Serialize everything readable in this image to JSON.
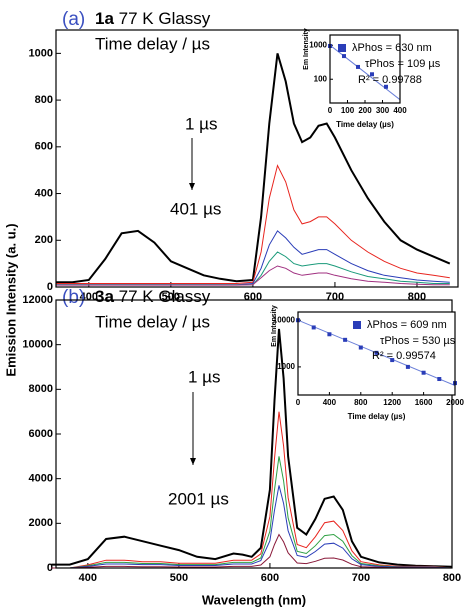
{
  "chart_data": [
    {
      "type": "line",
      "ylabel": "Emission Intensity (a. u.)",
      "annotations": {
        "panel": "(a)",
        "sample": "1a",
        "condition": "77 K Glassy",
        "delay_title": "Time delay / µs",
        "start": "1 µs",
        "end": "401 µs"
      },
      "x": [
        360,
        380,
        400,
        420,
        440,
        460,
        480,
        500,
        520,
        540,
        560,
        580,
        600,
        610,
        620,
        630,
        640,
        650,
        660,
        670,
        680,
        690,
        700,
        720,
        740,
        760,
        780,
        800,
        820,
        840
      ],
      "series": [
        {
          "color": "#000000",
          "values": [
            20,
            20,
            30,
            120,
            230,
            240,
            190,
            110,
            80,
            50,
            35,
            25,
            30,
            300,
            700,
            1000,
            880,
            700,
            620,
            640,
            690,
            700,
            640,
            500,
            380,
            280,
            200,
            160,
            130,
            100
          ]
        },
        {
          "color": "#e8251f",
          "values": [
            15,
            15,
            15,
            15,
            15,
            15,
            15,
            15,
            15,
            15,
            15,
            15,
            20,
            150,
            380,
            520,
            450,
            330,
            270,
            280,
            300,
            300,
            270,
            200,
            150,
            110,
            80,
            60,
            50,
            40
          ]
        },
        {
          "color": "#2a3db8",
          "values": [
            10,
            10,
            10,
            10,
            10,
            10,
            10,
            10,
            10,
            10,
            10,
            10,
            15,
            80,
            180,
            240,
            210,
            170,
            140,
            150,
            160,
            160,
            140,
            100,
            70,
            50,
            40,
            30,
            25,
            20
          ]
        },
        {
          "color": "#1a9a7a",
          "values": [
            10,
            10,
            10,
            10,
            10,
            10,
            10,
            10,
            10,
            10,
            10,
            10,
            10,
            50,
            110,
            150,
            130,
            100,
            90,
            95,
            100,
            100,
            90,
            65,
            45,
            35,
            25,
            20,
            15,
            15
          ]
        },
        {
          "color": "#a03080",
          "values": [
            8,
            8,
            8,
            8,
            8,
            8,
            8,
            8,
            8,
            8,
            8,
            8,
            10,
            40,
            70,
            90,
            80,
            60,
            50,
            55,
            60,
            60,
            50,
            35,
            25,
            20,
            15,
            12,
            10,
            10
          ]
        }
      ],
      "xlim": [
        360,
        850
      ],
      "xticks": [
        400,
        500,
        600,
        700,
        800
      ],
      "ylim": [
        0,
        1100
      ],
      "yticks": [
        0,
        200,
        400,
        600,
        800,
        1000
      ]
    },
    {
      "type": "scatter",
      "ylabel": "Em Intensity",
      "xlabel": "Time delay (µs)",
      "x": [
        0,
        80,
        160,
        240,
        320
      ],
      "series": [
        {
          "name": "λPhos = 630 nm",
          "color": "#2a3db8",
          "values": [
            950,
            480,
            230,
            140,
            60
          ]
        }
      ],
      "fit": {
        "color": "#6a7fd8",
        "x": [
          0,
          400
        ],
        "values": [
          1000,
          25
        ]
      },
      "annotations": {
        "tau": "τPhos = 109 µs",
        "r2": "R² = 0.99788"
      },
      "log_y": true,
      "xlim": [
        0,
        400
      ],
      "xticks": [
        0,
        100,
        200,
        300,
        400
      ],
      "ylim": [
        20,
        2000
      ],
      "yticks": [
        100,
        1000
      ]
    },
    {
      "type": "line",
      "xlabel": "Wavelength (nm)",
      "annotations": {
        "panel": "(b)",
        "sample": "3a",
        "condition": "77 K Glassy",
        "delay_title": "Time delay / µs",
        "start": "1 µs",
        "end": "2001 µs"
      },
      "x": [
        360,
        380,
        400,
        420,
        440,
        460,
        480,
        500,
        520,
        540,
        560,
        570,
        580,
        590,
        600,
        605,
        610,
        615,
        620,
        630,
        640,
        650,
        660,
        670,
        680,
        690,
        700,
        720,
        740,
        760,
        780,
        800
      ],
      "series": [
        {
          "color": "#000000",
          "values": [
            150,
            150,
            400,
            1300,
            1400,
            1200,
            1000,
            800,
            500,
            400,
            650,
            600,
            500,
            900,
            3500,
            7500,
            10700,
            8500,
            5000,
            1800,
            1500,
            2200,
            3100,
            3200,
            2600,
            1200,
            500,
            250,
            150,
            100,
            80,
            60
          ]
        },
        {
          "color": "#e8251f",
          "values": [
            0,
            0,
            140,
            350,
            350,
            280,
            280,
            210,
            210,
            210,
            350,
            350,
            350,
            630,
            2300,
            4900,
            7000,
            5460,
            3150,
            1050,
            910,
            1400,
            2030,
            2100,
            1680,
            770,
            280,
            140,
            70,
            70,
            70,
            0
          ]
        },
        {
          "color": "#2ea043",
          "values": [
            0,
            0,
            100,
            250,
            250,
            200,
            200,
            150,
            150,
            150,
            250,
            250,
            250,
            450,
            1650,
            3500,
            5000,
            3900,
            2250,
            750,
            650,
            1000,
            1450,
            1500,
            1200,
            550,
            200,
            100,
            50,
            50,
            50,
            0
          ]
        },
        {
          "color": "#2a3db8",
          "values": [
            0,
            0,
            70,
            180,
            180,
            150,
            150,
            110,
            110,
            110,
            180,
            180,
            180,
            330,
            1220,
            2590,
            3700,
            2890,
            1670,
            560,
            480,
            740,
            1070,
            1110,
            890,
            410,
            150,
            70,
            40,
            40,
            40,
            0
          ]
        },
        {
          "color": "#8a1a3a",
          "values": [
            0,
            0,
            30,
            70,
            70,
            60,
            60,
            45,
            45,
            45,
            70,
            70,
            70,
            135,
            500,
            1050,
            1500,
            1170,
            680,
            225,
            195,
            300,
            435,
            450,
            360,
            165,
            60,
            30,
            15,
            15,
            15,
            0
          ]
        }
      ],
      "xlim": [
        365,
        800
      ],
      "xticks": [
        400,
        500,
        600,
        700,
        800
      ],
      "ylim": [
        0,
        12000
      ],
      "yticks": [
        0,
        2000,
        4000,
        6000,
        8000,
        10000,
        12000
      ]
    },
    {
      "type": "scatter",
      "ylabel": "Em Intensity",
      "xlabel": "Time delay (µs)",
      "x": [
        0,
        200,
        400,
        600,
        800,
        1000,
        1200,
        1400,
        1600,
        1800,
        2000
      ],
      "series": [
        {
          "name": "λPhos = 609 nm",
          "color": "#2a3db8",
          "values": [
            10000,
            7000,
            5000,
            3800,
            2600,
            2000,
            1400,
            1000,
            750,
            550,
            450
          ]
        }
      ],
      "fit": {
        "color": "#6a7fd8",
        "x": [
          0,
          2000
        ],
        "values": [
          10000,
          400
        ]
      },
      "annotations": {
        "tau": "τPhos = 530 µs",
        "r2": "R² = 0.99574"
      },
      "log_y": true,
      "xlim": [
        0,
        2000
      ],
      "xticks": [
        0,
        400,
        800,
        1200,
        1600,
        2000
      ],
      "ylim": [
        250,
        15000
      ],
      "yticks": [
        1000,
        10000
      ]
    }
  ]
}
